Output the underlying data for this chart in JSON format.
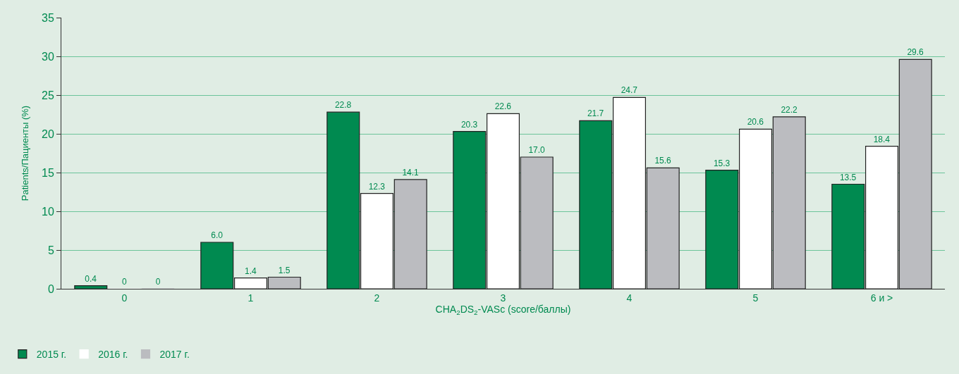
{
  "chart_data": {
    "type": "bar",
    "ylabel": "Patients/Пациенты (%)",
    "xlabel": "CHA$_{2}$DS$_{2}$-VASc (score/баллы)",
    "categories": [
      "0",
      "1",
      "2",
      "3",
      "4",
      "5",
      "6 и >"
    ],
    "series": [
      {
        "name": "2015 г.",
        "color": "#008a50",
        "values": [
          0.4,
          6.0,
          22.8,
          20.3,
          21.7,
          15.3,
          13.5
        ],
        "value_labels": [
          "0.4",
          "6.0",
          "22.8",
          "20.3",
          "21.7",
          "15.3",
          "13.5"
        ]
      },
      {
        "name": "2016 г.",
        "color": "#ffffff",
        "values": [
          0,
          1.4,
          12.3,
          22.6,
          24.7,
          20.6,
          18.4
        ],
        "value_labels": [
          "0",
          "1.4",
          "12.3",
          "22.6",
          "24.7",
          "20.6",
          "18.4"
        ]
      },
      {
        "name": "2017 г.",
        "color": "#bbbcc0",
        "values": [
          0,
          1.5,
          14.1,
          17.0,
          15.6,
          22.2,
          29.6
        ],
        "value_labels": [
          "0",
          "1.5",
          "14.1",
          "17.0",
          "15.6",
          "22.2",
          "29.6"
        ]
      }
    ],
    "ylim": [
      0,
      35
    ],
    "yticks": [
      0,
      5,
      10,
      15,
      20,
      25,
      30,
      35
    ],
    "grid": "y",
    "legend": "bottom left"
  }
}
